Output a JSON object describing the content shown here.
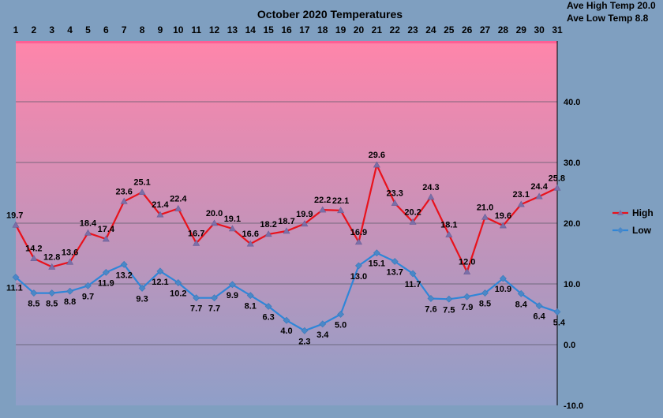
{
  "stats": {
    "ave_high": "Ave High Temp 20.0",
    "ave_low": "Ave Low Temp 8.8"
  },
  "chart_data": {
    "type": "line",
    "title": "October 2020 Temperatures",
    "x": [
      1,
      2,
      3,
      4,
      5,
      6,
      7,
      8,
      9,
      10,
      11,
      12,
      13,
      14,
      15,
      16,
      17,
      18,
      19,
      20,
      21,
      22,
      23,
      24,
      25,
      26,
      27,
      28,
      29,
      30,
      31
    ],
    "series": [
      {
        "name": "High",
        "color": "#e8121c",
        "values": [
          19.7,
          14.2,
          12.8,
          13.6,
          18.4,
          17.4,
          23.6,
          25.1,
          21.4,
          22.4,
          16.7,
          20.0,
          19.1,
          16.6,
          18.2,
          18.7,
          19.9,
          22.2,
          22.1,
          16.9,
          29.6,
          23.3,
          20.2,
          24.3,
          18.1,
          12.0,
          21.0,
          19.6,
          23.1,
          24.4,
          25.8
        ]
      },
      {
        "name": "Low",
        "color": "#2f86d8",
        "values": [
          11.1,
          8.5,
          8.5,
          8.8,
          9.7,
          11.9,
          13.2,
          9.3,
          12.1,
          10.2,
          7.7,
          7.7,
          9.9,
          8.1,
          6.3,
          4.0,
          2.3,
          3.4,
          5.0,
          13.0,
          15.1,
          13.7,
          11.7,
          7.6,
          7.5,
          7.9,
          8.5,
          10.9,
          8.4,
          6.4,
          5.4
        ]
      }
    ],
    "yticks": [
      "40.0",
      "30.0",
      "20.0",
      "10.0",
      "0.0",
      "-10.0"
    ],
    "ylim": [
      -10,
      50
    ],
    "grid": true,
    "legend_position": "right",
    "background_gradient": [
      "#ff85aa",
      "#8f9fc8"
    ]
  }
}
